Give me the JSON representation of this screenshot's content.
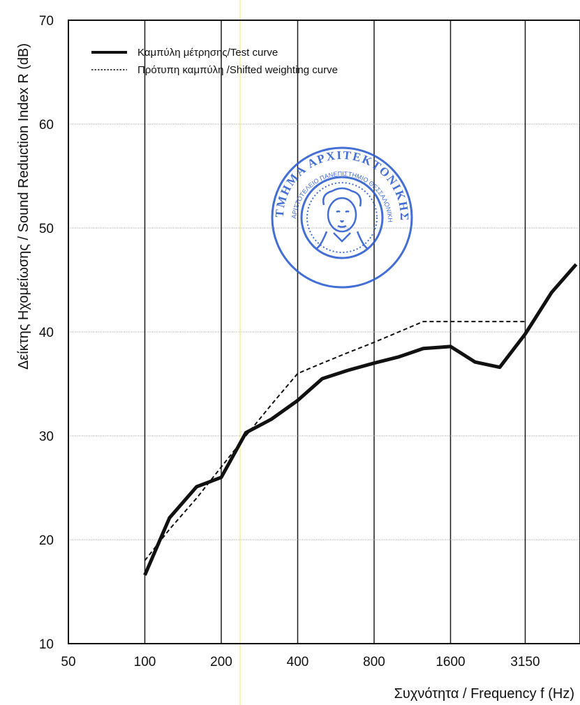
{
  "colors": {
    "grid_major": "#1a1a1a",
    "grid_minor": "#9a9a9a",
    "test_curve": "#111111",
    "weighting_curve": "#111111",
    "stamp": "#2f5fd0",
    "scan_line": "#f4e27a"
  },
  "stamp": {
    "text_top": "ΤΜΗΜΑ ΑΡΧΙΤΕΚΤΟΝΙΚΗΣ",
    "text_inner": "ΑΡΙΣΤΟΤΕΛΕΙΟ ΠΑΝΕΠΙΣΤΗΜΙΟ ΘΕΣΣΑΛΟΝΙΚΗΣ"
  },
  "chart_data": {
    "type": "line",
    "xlabel": "Συχνότητα / Frequency f (Hz)",
    "ylabel": "Δείκτης Ηχομείωσης / Sound Reduction Index R (dB)",
    "x_scale": "log2",
    "xlim": [
      50,
      5000
    ],
    "ylim": [
      10,
      70
    ],
    "x_ticks": [
      50,
      100,
      200,
      400,
      800,
      1600,
      3150
    ],
    "x_tick_labels": [
      "50",
      "100",
      "200",
      "400",
      "800",
      "1600",
      "3150"
    ],
    "y_ticks": [
      10,
      20,
      30,
      40,
      50,
      60,
      70
    ],
    "y_tick_labels": [
      "10",
      "20",
      "30",
      "40",
      "50",
      "60",
      "70"
    ],
    "grid": true,
    "legend_position": "top-left",
    "series": [
      {
        "name": "Καμπύλη μέτρησης/Test curve",
        "style": "solid",
        "x": [
          100,
          125,
          160,
          200,
          250,
          315,
          400,
          500,
          630,
          800,
          1000,
          1250,
          1600,
          2000,
          2500,
          3150,
          4000,
          5000
        ],
        "y": [
          16.6,
          22.1,
          25.1,
          26.0,
          30.3,
          31.6,
          33.4,
          35.5,
          36.3,
          37.0,
          37.6,
          38.4,
          38.6,
          37.1,
          36.6,
          39.8,
          43.8,
          46.5
        ]
      },
      {
        "name": "Πρότυπη καμπύλη /Shifted weighting curve",
        "style": "dashed",
        "x": [
          100,
          125,
          160,
          200,
          250,
          315,
          400,
          500,
          630,
          800,
          1000,
          1250,
          1600,
          2000,
          2500,
          3150
        ],
        "y": [
          18.0,
          21.0,
          24.0,
          27.0,
          30.0,
          33.0,
          36.0,
          37.0,
          38.0,
          39.0,
          40.0,
          41.0,
          41.0,
          41.0,
          41.0,
          41.0
        ]
      }
    ]
  }
}
